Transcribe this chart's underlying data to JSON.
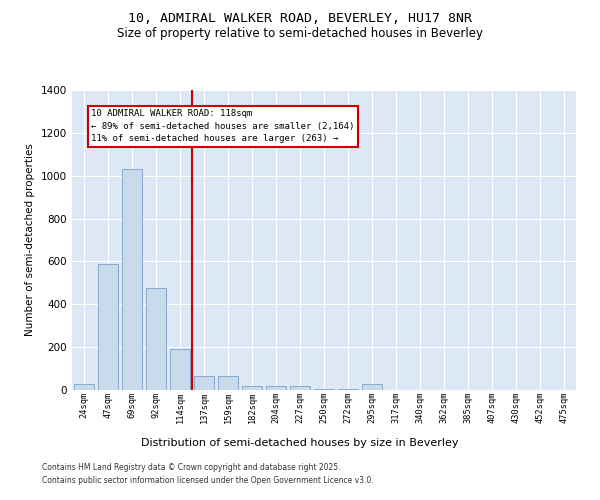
{
  "title1": "10, ADMIRAL WALKER ROAD, BEVERLEY, HU17 8NR",
  "title2": "Size of property relative to semi-detached houses in Beverley",
  "xlabel": "Distribution of semi-detached houses by size in Beverley",
  "ylabel": "Number of semi-detached properties",
  "bins": [
    "24sqm",
    "47sqm",
    "69sqm",
    "92sqm",
    "114sqm",
    "137sqm",
    "159sqm",
    "182sqm",
    "204sqm",
    "227sqm",
    "250sqm",
    "272sqm",
    "295sqm",
    "317sqm",
    "340sqm",
    "362sqm",
    "385sqm",
    "407sqm",
    "430sqm",
    "452sqm",
    "475sqm"
  ],
  "values": [
    30,
    590,
    1030,
    475,
    193,
    65,
    65,
    18,
    18,
    20,
    5,
    5,
    30,
    0,
    0,
    0,
    0,
    0,
    0,
    0,
    0
  ],
  "bar_color": "#c9daea",
  "bar_edge_color": "#7ba3c8",
  "highlight_line_color": "#cc0000",
  "annotation_line1": "10 ADMIRAL WALKER ROAD: 118sqm",
  "annotation_line2": "← 89% of semi-detached houses are smaller (2,164)",
  "annotation_line3": "11% of semi-detached houses are larger (263) →",
  "background_color": "#dce8f5",
  "ylim_max": 1400,
  "yticks": [
    0,
    200,
    400,
    600,
    800,
    1000,
    1200,
    1400
  ],
  "footer1": "Contains HM Land Registry data © Crown copyright and database right 2025.",
  "footer2": "Contains public sector information licensed under the Open Government Licence v3.0."
}
